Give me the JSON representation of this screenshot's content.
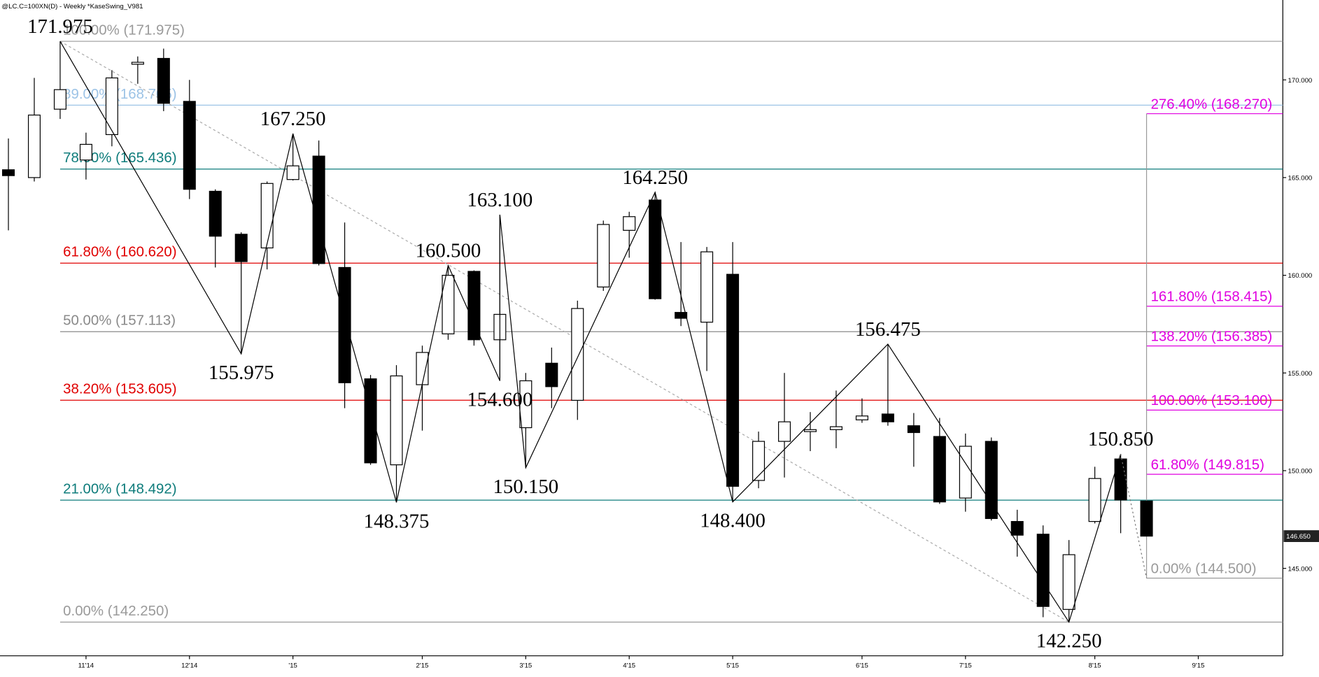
{
  "chart_data": {
    "type": "candlestick",
    "title": "@LC.C=100XN(D) - Weekly  *KaseSwing_V981",
    "categories": [
      null,
      null,
      null,
      "11'14",
      null,
      null,
      null,
      "12'14",
      null,
      null,
      null,
      "'15",
      null,
      null,
      null,
      null,
      "2'15",
      null,
      null,
      null,
      "3'15",
      null,
      null,
      null,
      "4'15",
      null,
      null,
      null,
      "5'15",
      null,
      null,
      null,
      null,
      "6'15",
      null,
      null,
      null,
      "7'15",
      null,
      null,
      null,
      null,
      "8'15",
      null,
      null,
      null,
      "9'15",
      null,
      null
    ],
    "open": [
      165.4,
      165.0,
      168.5,
      165.9,
      167.2,
      170.8,
      171.1,
      168.9,
      164.3,
      162.1,
      161.4,
      164.9,
      166.1,
      160.4,
      154.7,
      150.3,
      154.4,
      157.0,
      160.2,
      156.7,
      152.2,
      155.5,
      153.6,
      159.4,
      162.3,
      163.85,
      158.1,
      157.6,
      160.05,
      149.5,
      151.5,
      152.0,
      152.1,
      152.6,
      152.9,
      152.3,
      151.75,
      148.6,
      151.5,
      147.4,
      146.75,
      142.9,
      147.4,
      150.6,
      148.45,
      null,
      null,
      null,
      null
    ],
    "high": [
      167.0,
      170.1,
      171.975,
      167.3,
      170.5,
      171.2,
      171.6,
      170.0,
      164.4,
      162.2,
      164.8,
      167.25,
      166.9,
      162.7,
      154.9,
      155.4,
      156.4,
      160.5,
      160.25,
      163.1,
      155.0,
      156.3,
      158.7,
      162.8,
      163.25,
      164.25,
      161.7,
      161.45,
      161.7,
      152.0,
      155.0,
      153.0,
      154.1,
      153.7,
      156.475,
      152.95,
      152.7,
      151.9,
      151.7,
      148.0,
      147.2,
      146.45,
      150.2,
      150.85,
      148.45,
      null,
      null,
      null,
      null
    ],
    "low": [
      162.3,
      164.8,
      168.0,
      164.9,
      166.6,
      169.8,
      168.4,
      163.9,
      160.4,
      155.975,
      160.3,
      164.85,
      160.5,
      153.2,
      150.3,
      148.375,
      152.05,
      156.7,
      156.4,
      154.6,
      150.15,
      153.2,
      152.6,
      159.2,
      160.9,
      158.75,
      157.4,
      155.1,
      148.4,
      149.1,
      149.65,
      151.0,
      151.15,
      152.45,
      152.3,
      150.2,
      148.3,
      147.9,
      147.45,
      145.6,
      142.5,
      142.25,
      147.3,
      146.8,
      146.65,
      null,
      null,
      null,
      null
    ],
    "close": [
      165.1,
      168.2,
      169.5,
      166.7,
      170.1,
      170.9,
      168.8,
      164.4,
      162.0,
      160.7,
      164.7,
      165.6,
      160.6,
      154.5,
      150.4,
      154.85,
      156.05,
      160.0,
      156.7,
      158.0,
      154.6,
      154.3,
      158.3,
      162.6,
      163.0,
      158.8,
      157.8,
      161.2,
      149.2,
      151.5,
      152.5,
      152.1,
      152.25,
      152.8,
      152.5,
      151.95,
      148.4,
      151.25,
      147.55,
      146.7,
      143.05,
      145.7,
      149.6,
      148.5,
      146.65,
      null,
      null,
      null,
      null
    ],
    "ylim": [
      140.525,
      174.088
    ],
    "yticks": [
      {
        "value": 145,
        "label": "145.000"
      },
      {
        "value": 150,
        "label": "150.000"
      },
      {
        "value": 155,
        "label": "155.000"
      },
      {
        "value": 160,
        "label": "160.000"
      },
      {
        "value": 165,
        "label": "165.000"
      },
      {
        "value": 170,
        "label": "170.000"
      }
    ],
    "last_price": {
      "value": 146.65,
      "label": "146.650"
    },
    "swing_x": [
      2,
      9,
      11,
      15,
      17,
      19,
      19,
      20,
      25,
      28,
      34,
      41,
      43
    ],
    "swing_values": [
      171.975,
      155.975,
      167.25,
      148.375,
      160.5,
      154.6,
      163.1,
      150.15,
      164.25,
      148.4,
      156.475,
      142.25,
      150.85
    ],
    "swing_labels": [
      "171.975",
      "155.975",
      "167.250",
      "148.375",
      "160.500",
      "154.600",
      "163.100",
      "150.150",
      "164.250",
      "148.400",
      "156.475",
      "142.250",
      "150.850"
    ],
    "retracements": [
      {
        "label": "100.00% (171.975)",
        "value": 171.975,
        "color": "#9a9a9a"
      },
      {
        "label": "89.00% (168.705)",
        "value": 168.705,
        "color": "#9cc3e6"
      },
      {
        "label": "78.00% (165.436)",
        "value": 165.436,
        "color": "#0e7c7b"
      },
      {
        "label": "61.80% (160.620)",
        "value": 160.62,
        "color": "#e00000"
      },
      {
        "label": "50.00% (157.113)",
        "value": 157.113,
        "color": "#8a8a8a"
      },
      {
        "label": "38.20% (153.605)",
        "value": 153.605,
        "color": "#e00000"
      },
      {
        "label": "21.00% (148.492)",
        "value": 148.492,
        "color": "#0e7c7b"
      },
      {
        "label": "0.00% (142.250)",
        "value": 142.25,
        "color": "#9a9a9a"
      }
    ],
    "extensions": [
      {
        "label": "276.40% (168.270)",
        "value": 168.27,
        "color": "#e000e0"
      },
      {
        "label": "161.80% (158.415)",
        "value": 158.415,
        "color": "#e000e0"
      },
      {
        "label": "138.20% (156.385)",
        "value": 156.385,
        "color": "#e000e0"
      },
      {
        "label": "100.00% (153.100)",
        "value": 153.1,
        "color": "#e000e0"
      },
      {
        "label": "61.80% (149.815)",
        "value": 149.815,
        "color": "#e000e0"
      },
      {
        "label": "0.00% (144.500)",
        "value": 144.5,
        "color": "#9a9a9a"
      }
    ]
  }
}
